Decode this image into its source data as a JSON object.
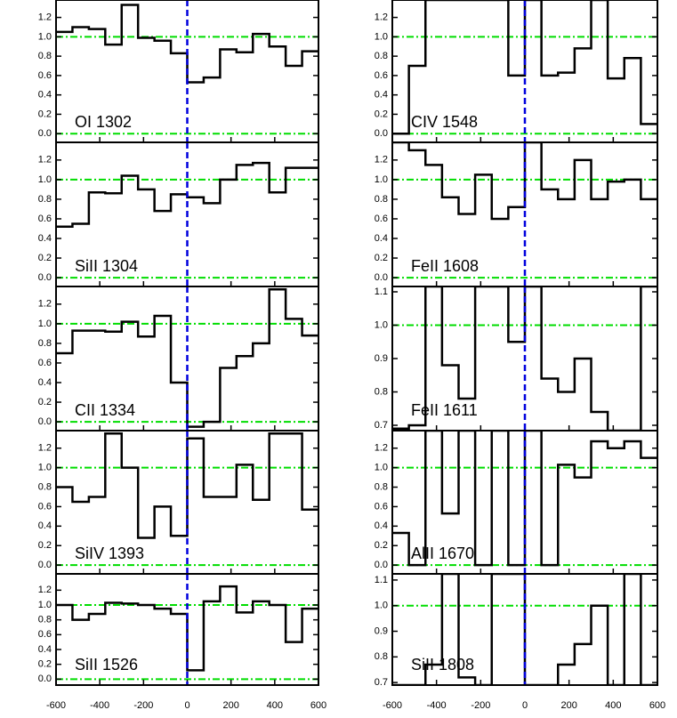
{
  "chart_data": [
    {
      "type": "step",
      "label": "OI 1302",
      "xlim": [
        -600,
        600
      ],
      "ylim": [
        -0.09,
        1.38
      ],
      "xticks": [
        -600,
        -400,
        -200,
        0,
        200,
        400,
        600
      ],
      "yticks": [
        {
          "value": 0,
          "label": "0.0"
        },
        {
          "value": 0.2,
          "label": "0.2"
        },
        {
          "value": 0.4,
          "label": "0.4"
        },
        {
          "value": 0.6,
          "label": "0.6"
        },
        {
          "value": 0.8,
          "label": "0.8"
        },
        {
          "value": 1,
          "label": "1.0"
        },
        {
          "value": 1.2,
          "label": "1.2"
        }
      ],
      "hlines": [
        0,
        1
      ],
      "vline": 0,
      "x": [
        -600,
        -525,
        -450,
        -375,
        -300,
        -225,
        -150,
        -75,
        0,
        75,
        150,
        225,
        300,
        375,
        450,
        525
      ],
      "values": [
        1.05,
        1.1,
        1.08,
        0.92,
        1.33,
        0.99,
        0.96,
        0.83,
        0.53,
        0.58,
        0.87,
        0.84,
        1.03,
        0.9,
        0.7,
        0.85
      ]
    },
    {
      "type": "step",
      "label": "SiII 1304",
      "xlim": [
        -600,
        600
      ],
      "ylim": [
        -0.09,
        1.38
      ],
      "xticks": [
        -600,
        -400,
        -200,
        0,
        200,
        400,
        600
      ],
      "yticks": [
        {
          "value": 0,
          "label": "0.0"
        },
        {
          "value": 0.2,
          "label": "0.2"
        },
        {
          "value": 0.4,
          "label": "0.4"
        },
        {
          "value": 0.6,
          "label": "0.6"
        },
        {
          "value": 0.8,
          "label": "0.8"
        },
        {
          "value": 1,
          "label": "1.0"
        },
        {
          "value": 1.2,
          "label": "1.2"
        }
      ],
      "hlines": [
        0,
        1
      ],
      "vline": 0,
      "x": [
        -600,
        -525,
        -450,
        -375,
        -300,
        -225,
        -150,
        -75,
        0,
        75,
        150,
        225,
        300,
        375,
        450,
        525
      ],
      "values": [
        0.52,
        0.55,
        0.87,
        0.86,
        1.04,
        0.9,
        0.68,
        0.85,
        0.82,
        0.76,
        1.0,
        1.15,
        1.17,
        0.87,
        1.12,
        1.12
      ]
    },
    {
      "type": "step",
      "label": "CII 1334",
      "xlim": [
        -600,
        600
      ],
      "ylim": [
        -0.09,
        1.38
      ],
      "xticks": [
        -600,
        -400,
        -200,
        0,
        200,
        400,
        600
      ],
      "yticks": [
        {
          "value": 0,
          "label": "0.0"
        },
        {
          "value": 0.2,
          "label": "0.2"
        },
        {
          "value": 0.4,
          "label": "0.4"
        },
        {
          "value": 0.6,
          "label": "0.6"
        },
        {
          "value": 0.8,
          "label": "0.8"
        },
        {
          "value": 1,
          "label": "1.0"
        },
        {
          "value": 1.2,
          "label": "1.2"
        }
      ],
      "hlines": [
        0,
        1
      ],
      "vline": 0,
      "x": [
        -600,
        -525,
        -450,
        -375,
        -300,
        -225,
        -150,
        -75,
        0,
        75,
        150,
        225,
        300,
        375,
        450,
        525
      ],
      "values": [
        0.7,
        0.93,
        0.93,
        0.92,
        1.02,
        0.87,
        1.08,
        0.4,
        -0.05,
        0.0,
        0.55,
        0.67,
        0.8,
        1.35,
        1.05,
        0.88
      ]
    },
    {
      "type": "step",
      "label": "SiIV 1393",
      "xlim": [
        -600,
        600
      ],
      "ylim": [
        -0.09,
        1.38
      ],
      "xticks": [
        -600,
        -400,
        -200,
        0,
        200,
        400,
        600
      ],
      "yticks": [
        {
          "value": 0,
          "label": "0.0"
        },
        {
          "value": 0.2,
          "label": "0.2"
        },
        {
          "value": 0.4,
          "label": "0.4"
        },
        {
          "value": 0.6,
          "label": "0.6"
        },
        {
          "value": 0.8,
          "label": "0.8"
        },
        {
          "value": 1,
          "label": "1.0"
        },
        {
          "value": 1.2,
          "label": "1.2"
        }
      ],
      "hlines": [
        0,
        1
      ],
      "vline": 0,
      "x": [
        -600,
        -525,
        -450,
        -375,
        -300,
        -225,
        -150,
        -75,
        0,
        75,
        150,
        225,
        300,
        375,
        450,
        525
      ],
      "values": [
        0.8,
        0.65,
        0.7,
        1.35,
        1.0,
        0.28,
        0.6,
        0.3,
        1.3,
        0.7,
        0.7,
        1.03,
        0.67,
        1.35,
        1.35,
        0.57
      ]
    },
    {
      "type": "step",
      "label": "SiII 1526",
      "xlim": [
        -600,
        600
      ],
      "ylim": [
        -0.08,
        1.42
      ],
      "xticks": [
        -600,
        -400,
        -200,
        0,
        200,
        400,
        600
      ],
      "yticks": [
        {
          "value": 0,
          "label": "0.0"
        },
        {
          "value": 0.2,
          "label": "0.2"
        },
        {
          "value": 0.4,
          "label": "0.4"
        },
        {
          "value": 0.6,
          "label": "0.6"
        },
        {
          "value": 0.8,
          "label": "0.8"
        },
        {
          "value": 1,
          "label": "1.0"
        },
        {
          "value": 1.2,
          "label": "1.2"
        }
      ],
      "hlines": [
        0,
        1
      ],
      "vline": 0,
      "x": [
        -600,
        -525,
        -450,
        -375,
        -300,
        -225,
        -150,
        -75,
        0,
        75,
        150,
        225,
        300,
        375,
        450,
        525
      ],
      "values": [
        1.0,
        0.8,
        0.88,
        1.03,
        1.02,
        1.0,
        0.95,
        0.88,
        0.12,
        1.05,
        1.25,
        0.9,
        1.05,
        1.0,
        0.5,
        0.95
      ]
    },
    {
      "type": "step",
      "label": "CIV 1548",
      "xlim": [
        -600,
        600
      ],
      "ylim": [
        -0.09,
        1.38
      ],
      "xticks": [
        -600,
        -400,
        -200,
        0,
        200,
        400,
        600
      ],
      "yticks": [
        {
          "value": 0,
          "label": "0.0"
        },
        {
          "value": 0.2,
          "label": "0.2"
        },
        {
          "value": 0.4,
          "label": "0.4"
        },
        {
          "value": 0.6,
          "label": "0.6"
        },
        {
          "value": 0.8,
          "label": "0.8"
        },
        {
          "value": 1,
          "label": "1.0"
        },
        {
          "value": 1.2,
          "label": "1.2"
        }
      ],
      "hlines": [
        0,
        1
      ],
      "vline": 0,
      "x": [
        -600,
        -525,
        -450,
        -375,
        -300,
        -225,
        -150,
        -75,
        0,
        75,
        150,
        225,
        300,
        375,
        450,
        525
      ],
      "values": [
        0.0,
        0.7,
        1.38,
        1.38,
        1.38,
        1.38,
        1.38,
        0.6,
        1.38,
        0.6,
        0.63,
        0.88,
        1.38,
        0.57,
        0.78,
        0.1
      ]
    },
    {
      "type": "step",
      "label": "FeII 1608",
      "xlim": [
        -600,
        600
      ],
      "ylim": [
        -0.09,
        1.38
      ],
      "xticks": [
        -600,
        -400,
        -200,
        0,
        200,
        400,
        600
      ],
      "yticks": [
        {
          "value": 0,
          "label": "0.0"
        },
        {
          "value": 0.2,
          "label": "0.2"
        },
        {
          "value": 0.4,
          "label": "0.4"
        },
        {
          "value": 0.6,
          "label": "0.6"
        },
        {
          "value": 0.8,
          "label": "0.8"
        },
        {
          "value": 1,
          "label": "1.0"
        },
        {
          "value": 1.2,
          "label": "1.2"
        }
      ],
      "hlines": [
        0,
        1
      ],
      "vline": 0,
      "x": [
        -600,
        -525,
        -450,
        -375,
        -300,
        -225,
        -150,
        -75,
        0,
        75,
        150,
        225,
        300,
        375,
        450,
        525
      ],
      "values": [
        1.38,
        1.3,
        1.15,
        0.82,
        0.65,
        1.05,
        0.6,
        0.72,
        1.38,
        0.9,
        0.8,
        1.2,
        0.8,
        0.98,
        1.0,
        0.8
      ]
    },
    {
      "type": "step",
      "label": "FeII 1611",
      "xlim": [
        -600,
        600
      ],
      "ylim": [
        0.684,
        1.116
      ],
      "xticks": [
        -600,
        -400,
        -200,
        0,
        200,
        400,
        600
      ],
      "yticks": [
        0.7,
        0.8,
        0.9,
        {
          "value": 1,
          "label": "1.0"
        },
        1.1
      ],
      "hlines": [
        1
      ],
      "vline": 0,
      "x": [
        -600,
        -525,
        -450,
        -375,
        -300,
        -225,
        -150,
        -75,
        0,
        75,
        150,
        225,
        300,
        375,
        450,
        525
      ],
      "values": [
        0.69,
        0.7,
        1.116,
        0.88,
        0.78,
        1.116,
        1.116,
        0.95,
        1.116,
        0.84,
        0.8,
        0.9,
        0.74,
        0.684,
        0.684,
        1.116
      ]
    },
    {
      "type": "step",
      "label": "AlII 1670",
      "xlim": [
        -600,
        600
      ],
      "ylim": [
        -0.09,
        1.38
      ],
      "xticks": [
        -600,
        -400,
        -200,
        0,
        200,
        400,
        600
      ],
      "yticks": [
        {
          "value": 0,
          "label": "0.0"
        },
        {
          "value": 0.2,
          "label": "0.2"
        },
        {
          "value": 0.4,
          "label": "0.4"
        },
        {
          "value": 0.6,
          "label": "0.6"
        },
        {
          "value": 0.8,
          "label": "0.8"
        },
        {
          "value": 1,
          "label": "1.0"
        },
        {
          "value": 1.2,
          "label": "1.2"
        }
      ],
      "hlines": [
        0,
        1
      ],
      "vline": 0,
      "x": [
        -600,
        -525,
        -450,
        -375,
        -300,
        -225,
        -150,
        -75,
        0,
        75,
        150,
        225,
        300,
        375,
        450,
        525
      ],
      "values": [
        0.33,
        0.0,
        1.38,
        0.53,
        1.38,
        0.0,
        1.38,
        0.0,
        1.38,
        0.0,
        1.03,
        0.9,
        1.27,
        1.2,
        1.27,
        1.1
      ]
    },
    {
      "type": "step",
      "label": "SiII 1808",
      "xlim": [
        -600,
        600
      ],
      "ylim": [
        0.69,
        1.124
      ],
      "xticks": [
        -600,
        -400,
        -200,
        0,
        200,
        400,
        600
      ],
      "yticks": [
        0.7,
        0.8,
        0.9,
        {
          "value": 1,
          "label": "1.0"
        },
        1.1
      ],
      "hlines": [
        1
      ],
      "vline": 0,
      "x": [
        -600,
        -525,
        -450,
        -375,
        -300,
        -225,
        -150,
        -75,
        0,
        75,
        150,
        225,
        300,
        375,
        450,
        525
      ],
      "values": [
        0.69,
        0.69,
        0.77,
        1.124,
        0.72,
        0.69,
        1.124,
        1.124,
        0.69,
        0.69,
        0.77,
        0.85,
        1.0,
        0.69,
        1.124,
        0.69
      ]
    }
  ]
}
